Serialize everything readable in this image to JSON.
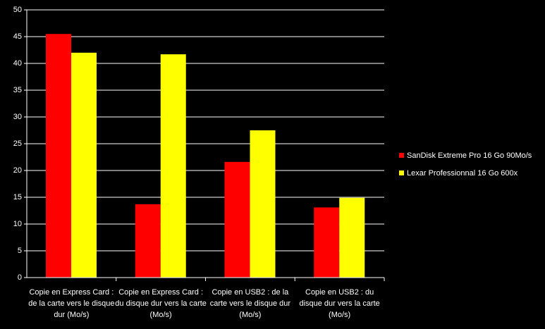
{
  "chart_data": {
    "type": "bar",
    "categories": [
      "Copie en Express Card : de la carte vers le disque dur (Mo/s)",
      "Copie en Express Card : du disque dur vers la carte (Mo/s)",
      "Copie en USB2 : de la carte vers le disque dur (Mo/s)",
      "Copie en USB2 : du disque dur vers la carte (Mo/s)"
    ],
    "series": [
      {
        "name": "SanDisk Extreme Pro 16 Go 90Mo/s",
        "color": "#ff0000",
        "values": [
          45.5,
          13.7,
          21.6,
          13.1
        ]
      },
      {
        "name": "Lexar Professionnal 16 Go 600x",
        "color": "#ffff00",
        "values": [
          42,
          41.7,
          27.5,
          14.9
        ]
      }
    ],
    "ylim": [
      0,
      50
    ],
    "yticks": [
      0,
      5,
      10,
      15,
      20,
      25,
      30,
      35,
      40,
      45,
      50
    ],
    "grid": true,
    "legend": "right"
  }
}
